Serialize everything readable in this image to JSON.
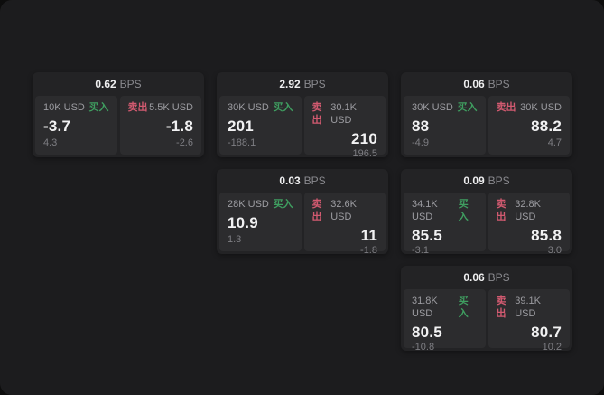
{
  "colors": {
    "buy": "#3f9e60",
    "sell": "#d25a70",
    "window_bg": "#1c1c1e",
    "card_bg": "#232325",
    "panel_bg": "#2c2c2e"
  },
  "cards": [
    {
      "bps_value": "0.62",
      "bps_unit": "BPS",
      "buy": {
        "amount": "10K USD",
        "side": "买入",
        "price": "-3.7",
        "delta": "4.3"
      },
      "sell": {
        "side": "卖出",
        "amount": "5.5K USD",
        "price": "-1.8",
        "delta": "-2.6"
      }
    },
    {
      "bps_value": "2.92",
      "bps_unit": "BPS",
      "buy": {
        "amount": "30K USD",
        "side": "买入",
        "price": "201",
        "delta": "-188.1"
      },
      "sell": {
        "side": "卖出",
        "amount": "30.1K USD",
        "price": "210",
        "delta": "196.5"
      }
    },
    {
      "bps_value": "0.06",
      "bps_unit": "BPS",
      "buy": {
        "amount": "30K USD",
        "side": "买入",
        "price": "88",
        "delta": "-4.9"
      },
      "sell": {
        "side": "卖出",
        "amount": "30K USD",
        "price": "88.2",
        "delta": "4.7"
      }
    },
    {
      "bps_value": "0.03",
      "bps_unit": "BPS",
      "buy": {
        "amount": "28K USD",
        "side": "买入",
        "price": "10.9",
        "delta": "1.3"
      },
      "sell": {
        "side": "卖出",
        "amount": "32.6K USD",
        "price": "11",
        "delta": "-1.8"
      }
    },
    {
      "bps_value": "0.09",
      "bps_unit": "BPS",
      "buy": {
        "amount": "34.1K USD",
        "side": "买入",
        "price": "85.5",
        "delta": "-3.1"
      },
      "sell": {
        "side": "卖出",
        "amount": "32.8K USD",
        "price": "85.8",
        "delta": "3.0"
      }
    },
    {
      "bps_value": "0.06",
      "bps_unit": "BPS",
      "buy": {
        "amount": "31.8K USD",
        "side": "买入",
        "price": "80.5",
        "delta": "-10.8"
      },
      "sell": {
        "side": "卖出",
        "amount": "39.1K USD",
        "price": "80.7",
        "delta": "10.2"
      }
    }
  ]
}
